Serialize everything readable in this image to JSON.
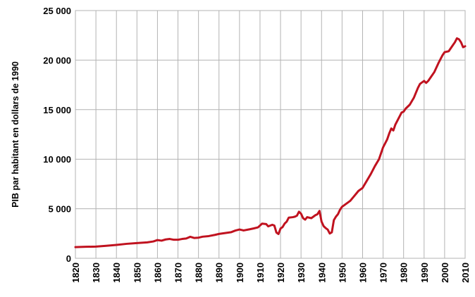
{
  "chart_data": {
    "type": "line",
    "title": "",
    "xlabel": "",
    "ylabel": "PIB par habitant en dollars de 1990",
    "xlim": [
      1820,
      2010
    ],
    "ylim": [
      0,
      25000
    ],
    "x_ticks": [
      1820,
      1830,
      1840,
      1850,
      1860,
      1870,
      1880,
      1890,
      1900,
      1910,
      1920,
      1930,
      1940,
      1950,
      1960,
      1970,
      1980,
      1990,
      2000,
      2010
    ],
    "x_tick_labels": [
      "1820",
      "1830",
      "1840",
      "1850",
      "1860",
      "1870",
      "1880",
      "1890",
      "1900",
      "1910",
      "1920",
      "1930",
      "1940",
      "1950",
      "1960",
      "1970",
      "1980",
      "1990",
      "2000",
      "2010"
    ],
    "y_ticks": [
      0,
      5000,
      10000,
      15000,
      20000,
      25000
    ],
    "y_tick_labels": [
      "0",
      "5 000",
      "10 000",
      "15 000",
      "20 000",
      "25 000"
    ],
    "grid": true,
    "legend": "none",
    "series": [
      {
        "color": "#c0121f",
        "points": [
          [
            1820,
            1130
          ],
          [
            1825,
            1160
          ],
          [
            1830,
            1180
          ],
          [
            1835,
            1260
          ],
          [
            1840,
            1350
          ],
          [
            1845,
            1460
          ],
          [
            1850,
            1540
          ],
          [
            1855,
            1610
          ],
          [
            1858,
            1700
          ],
          [
            1860,
            1840
          ],
          [
            1862,
            1780
          ],
          [
            1864,
            1900
          ],
          [
            1866,
            1950
          ],
          [
            1868,
            1870
          ],
          [
            1870,
            1870
          ],
          [
            1872,
            1950
          ],
          [
            1874,
            2000
          ],
          [
            1876,
            2170
          ],
          [
            1878,
            2050
          ],
          [
            1880,
            2080
          ],
          [
            1882,
            2180
          ],
          [
            1885,
            2240
          ],
          [
            1888,
            2360
          ],
          [
            1890,
            2460
          ],
          [
            1893,
            2550
          ],
          [
            1896,
            2640
          ],
          [
            1898,
            2800
          ],
          [
            1900,
            2910
          ],
          [
            1902,
            2810
          ],
          [
            1905,
            2930
          ],
          [
            1907,
            3020
          ],
          [
            1909,
            3120
          ],
          [
            1911,
            3500
          ],
          [
            1913,
            3450
          ],
          [
            1914,
            3220
          ],
          [
            1916,
            3380
          ],
          [
            1917,
            3300
          ],
          [
            1918,
            2600
          ],
          [
            1919,
            2450
          ],
          [
            1920,
            3000
          ],
          [
            1921,
            3150
          ],
          [
            1922,
            3500
          ],
          [
            1923,
            3700
          ],
          [
            1924,
            4100
          ],
          [
            1926,
            4150
          ],
          [
            1927,
            4200
          ],
          [
            1928,
            4300
          ],
          [
            1929,
            4700
          ],
          [
            1930,
            4500
          ],
          [
            1931,
            4050
          ],
          [
            1932,
            3900
          ],
          [
            1933,
            4150
          ],
          [
            1935,
            4050
          ],
          [
            1936,
            4200
          ],
          [
            1937,
            4350
          ],
          [
            1938,
            4450
          ],
          [
            1939,
            4780
          ],
          [
            1940,
            3700
          ],
          [
            1941,
            3250
          ],
          [
            1942,
            3050
          ],
          [
            1943,
            2900
          ],
          [
            1944,
            2500
          ],
          [
            1945,
            2620
          ],
          [
            1946,
            3850
          ],
          [
            1947,
            4200
          ],
          [
            1948,
            4450
          ],
          [
            1949,
            4900
          ],
          [
            1950,
            5200
          ],
          [
            1952,
            5500
          ],
          [
            1954,
            5800
          ],
          [
            1956,
            6300
          ],
          [
            1958,
            6800
          ],
          [
            1960,
            7100
          ],
          [
            1962,
            7800
          ],
          [
            1964,
            8500
          ],
          [
            1966,
            9300
          ],
          [
            1968,
            10000
          ],
          [
            1970,
            11200
          ],
          [
            1972,
            12000
          ],
          [
            1973,
            12600
          ],
          [
            1974,
            13100
          ],
          [
            1975,
            12900
          ],
          [
            1976,
            13500
          ],
          [
            1978,
            14300
          ],
          [
            1979,
            14700
          ],
          [
            1980,
            14800
          ],
          [
            1981,
            15100
          ],
          [
            1983,
            15500
          ],
          [
            1985,
            16200
          ],
          [
            1986,
            16700
          ],
          [
            1987,
            17200
          ],
          [
            1988,
            17600
          ],
          [
            1990,
            17900
          ],
          [
            1991,
            17700
          ],
          [
            1992,
            17900
          ],
          [
            1993,
            18200
          ],
          [
            1995,
            18800
          ],
          [
            1997,
            19700
          ],
          [
            1999,
            20500
          ],
          [
            2000,
            20800
          ],
          [
            2002,
            20900
          ],
          [
            2003,
            21200
          ],
          [
            2004,
            21500
          ],
          [
            2005,
            21800
          ],
          [
            2006,
            22200
          ],
          [
            2007,
            22100
          ],
          [
            2008,
            21800
          ],
          [
            2009,
            21300
          ],
          [
            2010,
            21400
          ]
        ]
      }
    ]
  }
}
